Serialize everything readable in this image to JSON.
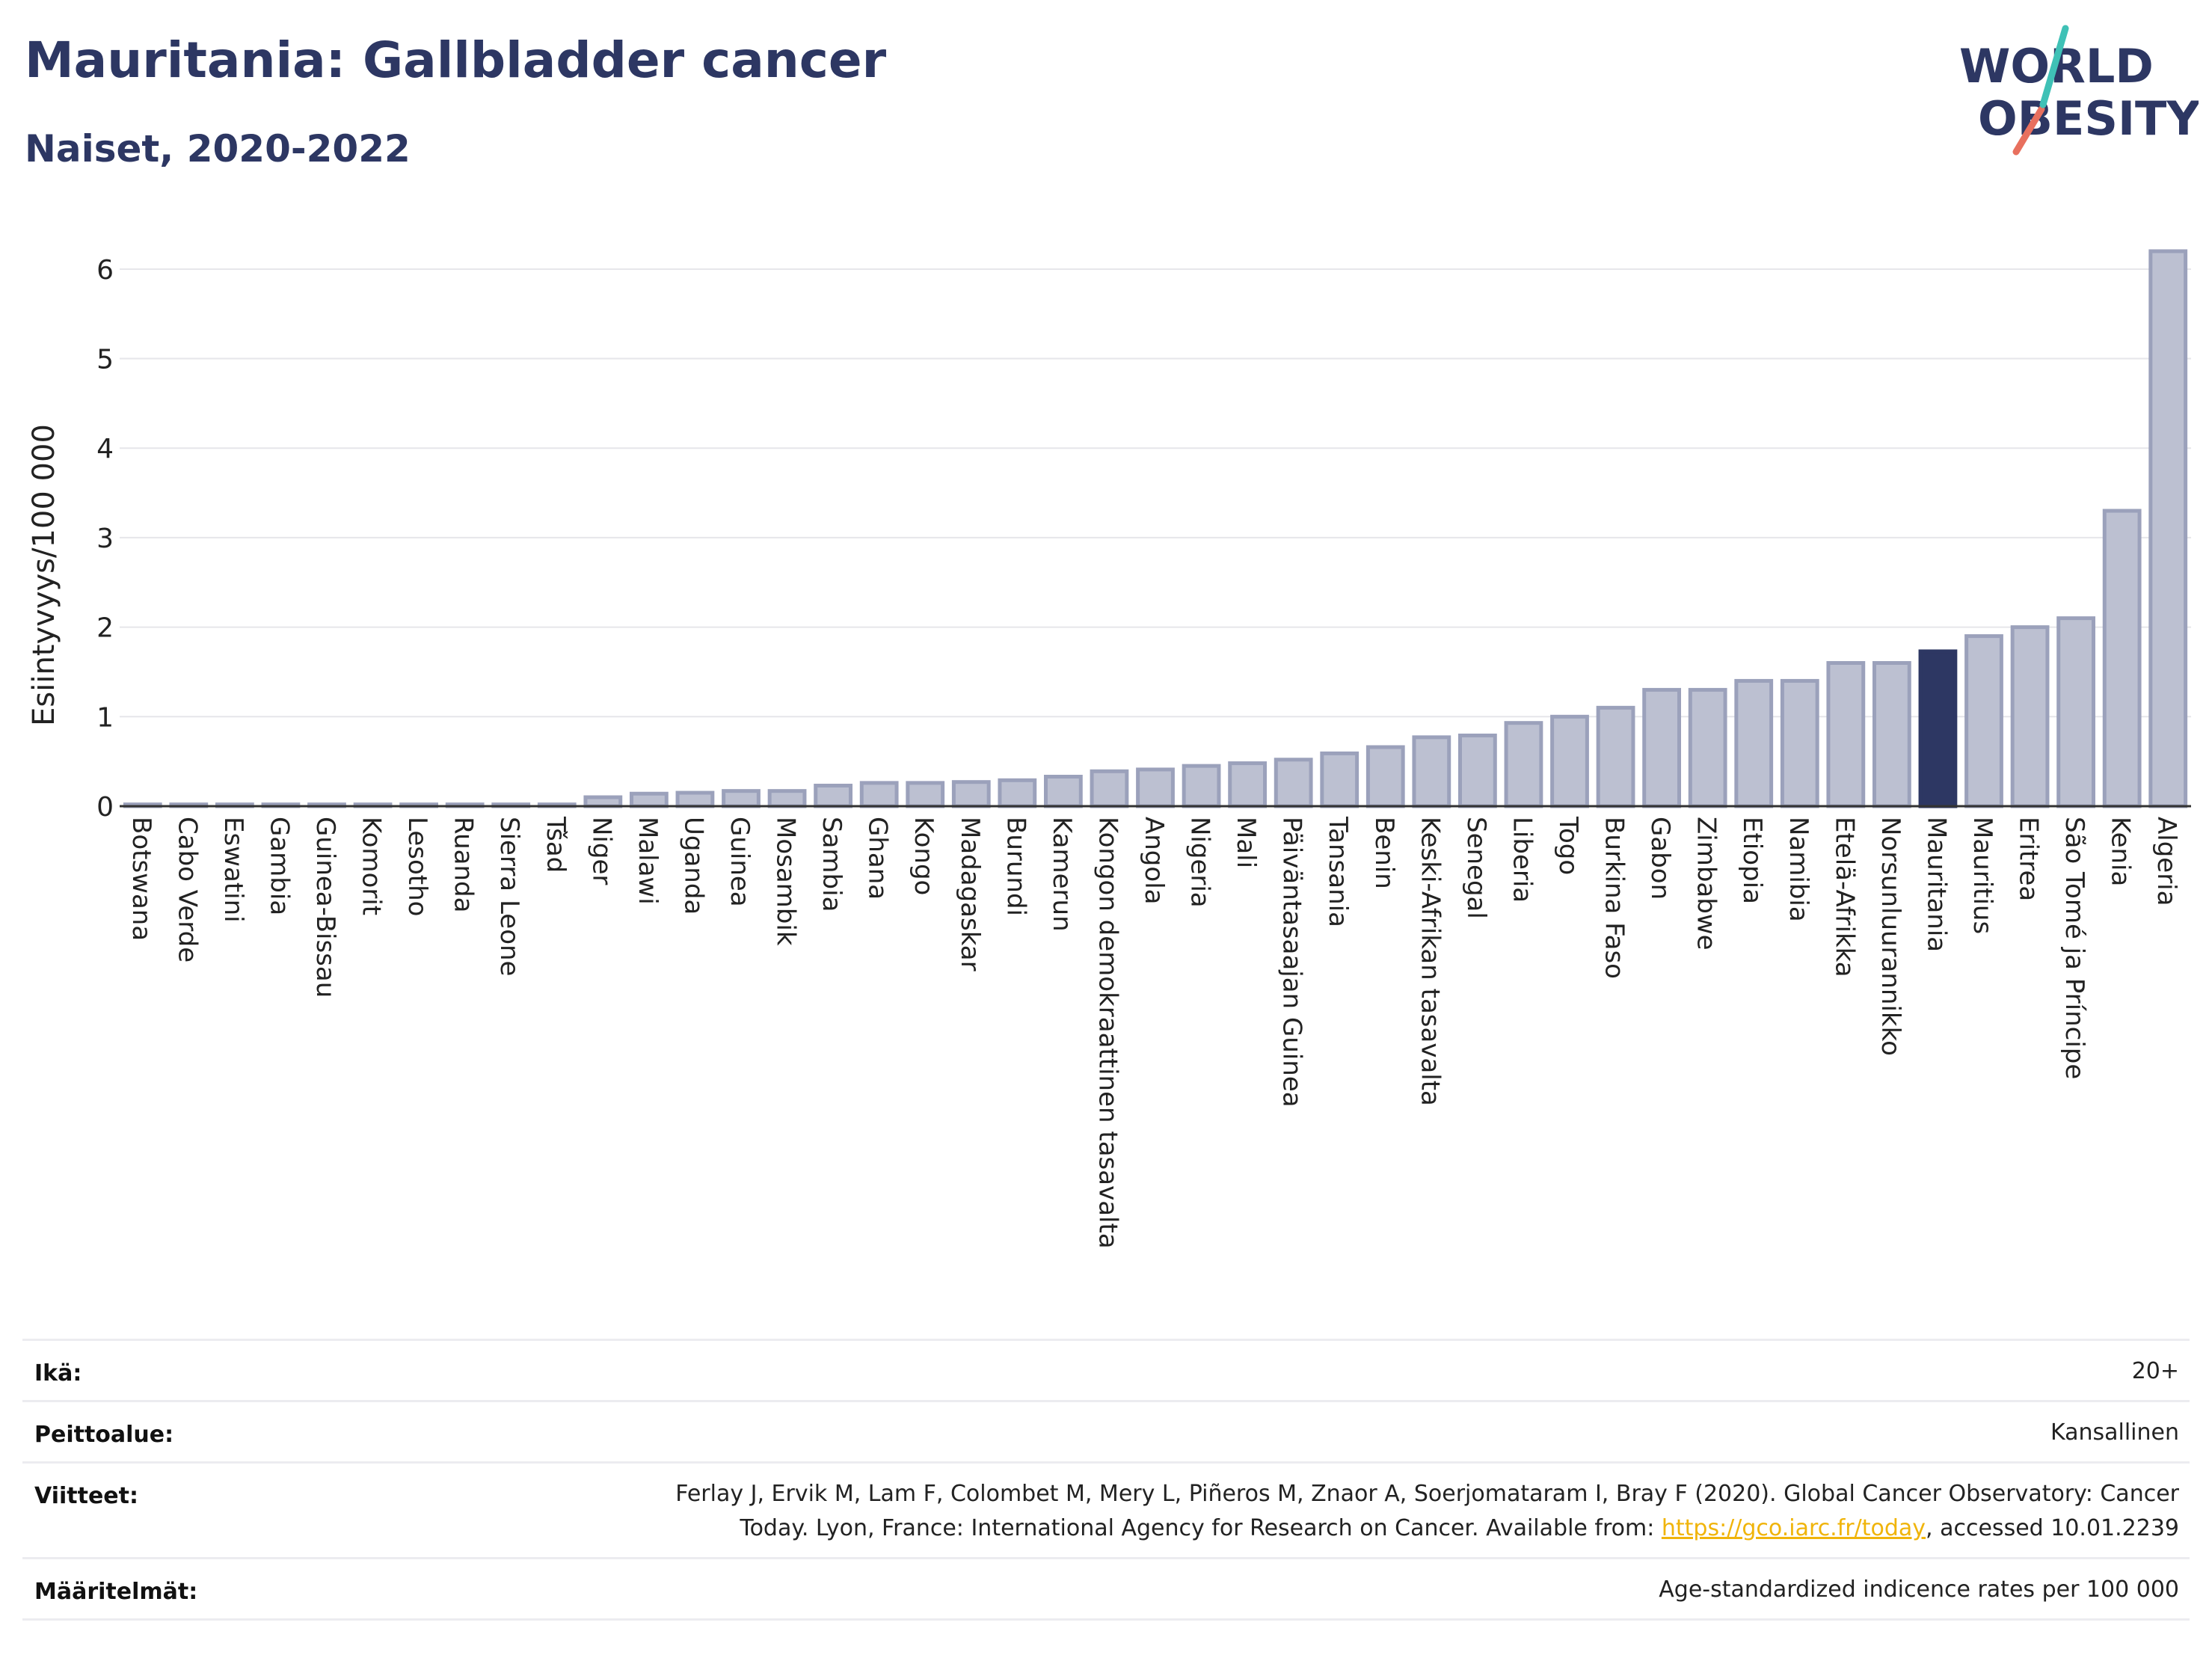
{
  "title": "Mauritania: Gallbladder cancer",
  "subtitle": "Naiset, 2020-2022",
  "logo": {
    "line1": "WORLD",
    "line2": "OBESITY"
  },
  "colors": {
    "bar": "#bcc0d1",
    "bar_border": "#9ba1bb",
    "highlight": "#2d3763",
    "grid": "#e6e6ea",
    "axis": "#333333"
  },
  "chart_data": {
    "type": "bar",
    "ylabel": "Esiintyvyys/100 000",
    "xlabel": "",
    "ylim": [
      0,
      6.5
    ],
    "yticks": [
      0,
      1,
      2,
      3,
      4,
      5,
      6
    ],
    "highlight": "Mauritania",
    "categories": [
      "Botswana",
      "Cabo Verde",
      "Eswatini",
      "Gambia",
      "Guinea-Bissau",
      "Komorit",
      "Lesotho",
      "Ruanda",
      "Sierra Leone",
      "Tšad",
      "Niger",
      "Malawi",
      "Uganda",
      "Guinea",
      "Mosambik",
      "Sambia",
      "Ghana",
      "Kongo",
      "Madagaskar",
      "Burundi",
      "Kamerun",
      "Kongon demokraattinen tasavalta",
      "Angola",
      "Nigeria",
      "Mali",
      "Päiväntasaajan Guinea",
      "Tansania",
      "Benin",
      "Keski-Afrikan tasavalta",
      "Senegal",
      "Liberia",
      "Togo",
      "Burkina Faso",
      "Gabon",
      "Zimbabwe",
      "Etiopia",
      "Namibia",
      "Etelä-Afrikka",
      "Norsunluurannikko",
      "Mauritania",
      "Mauritius",
      "Eritrea",
      "São Tomé ja Príncipe",
      "Kenia",
      "Algeria"
    ],
    "values": [
      0.02,
      0.02,
      0.02,
      0.02,
      0.02,
      0.02,
      0.02,
      0.02,
      0.02,
      0.02,
      0.1,
      0.14,
      0.15,
      0.17,
      0.17,
      0.23,
      0.26,
      0.26,
      0.27,
      0.29,
      0.33,
      0.39,
      0.41,
      0.45,
      0.48,
      0.52,
      0.59,
      0.66,
      0.77,
      0.79,
      0.93,
      1.0,
      1.1,
      1.3,
      1.3,
      1.4,
      1.4,
      1.6,
      1.6,
      1.73,
      1.9,
      2.0,
      2.1,
      3.3,
      6.2
    ]
  },
  "meta": {
    "rows": [
      {
        "label": "Ikä:",
        "value": "20+"
      },
      {
        "label": "Peittoalue:",
        "value": "Kansallinen"
      },
      {
        "label": "Viitteet:",
        "value_line1": "Ferlay J, Ervik M, Lam F, Colombet M, Mery L, Piñeros M, Znaor A, Soerjomataram I, Bray F (2020). Global Cancer Observatory: Cancer",
        "value_line2_pre": "Today. Lyon, France: International Agency for Research on Cancer. Available from: ",
        "link": "https://gco.iarc.fr/today",
        "value_line2_post": ", accessed 10.01.2239"
      },
      {
        "label": "Määritelmät:",
        "value": "Age-standardized indicence rates per 100 000"
      }
    ]
  }
}
